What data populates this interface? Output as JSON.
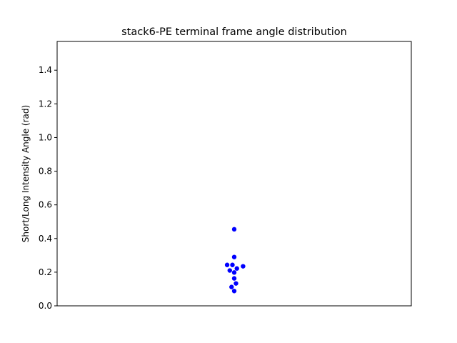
{
  "chart_data": {
    "type": "scatter",
    "title": "stack6-PE terminal frame angle distribution",
    "xlabel": "",
    "ylabel": "Short/Long Intensity Angle (rad)",
    "ylim": [
      0.0,
      1.5708
    ],
    "yticks": [
      0.0,
      0.2,
      0.4,
      0.6,
      0.8,
      1.0,
      1.2,
      1.4
    ],
    "ytick_labels": [
      "0.0",
      "0.2",
      "0.4",
      "0.6",
      "0.8",
      "1.0",
      "1.2",
      "1.4"
    ],
    "grid": false,
    "legend": false,
    "point_color": "#0000ff",
    "points": [
      {
        "x": 0.0,
        "y": 0.455
      },
      {
        "x": 0.0,
        "y": 0.29
      },
      {
        "x": -0.04,
        "y": 0.243
      },
      {
        "x": -0.01,
        "y": 0.243
      },
      {
        "x": 0.05,
        "y": 0.235
      },
      {
        "x": 0.015,
        "y": 0.222
      },
      {
        "x": -0.025,
        "y": 0.21
      },
      {
        "x": 0.0,
        "y": 0.198
      },
      {
        "x": 0.0,
        "y": 0.163
      },
      {
        "x": 0.01,
        "y": 0.133
      },
      {
        "x": -0.015,
        "y": 0.112
      },
      {
        "x": 0.0,
        "y": 0.088
      }
    ],
    "xlim": [
      -1.0,
      1.0
    ]
  }
}
